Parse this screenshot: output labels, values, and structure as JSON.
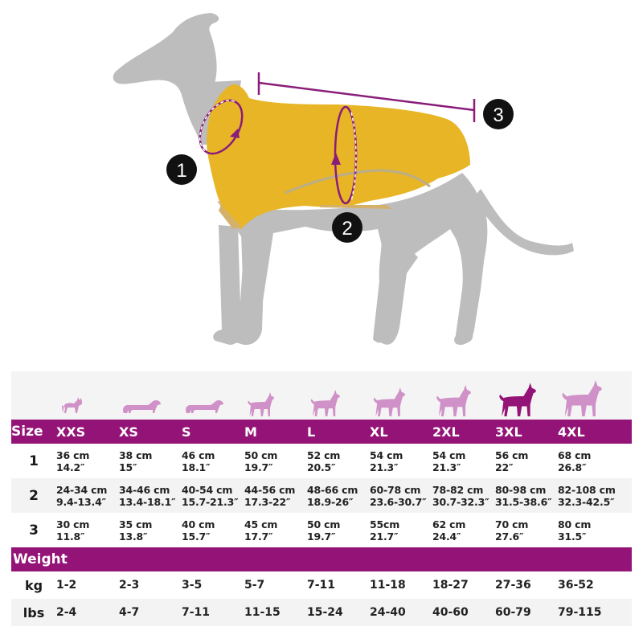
{
  "illustration": {
    "measurement_markers": [
      {
        "number": "1",
        "meaning": "neck circumference"
      },
      {
        "number": "2",
        "meaning": "chest circumference"
      },
      {
        "number": "3",
        "meaning": "back length"
      }
    ],
    "colors": {
      "dog_silhouette": "#bdbdbd",
      "coat": "#e8b526",
      "measure_line": "#8a1d7a",
      "marker_bg": "#111111"
    }
  },
  "size_chart": {
    "header_label": "Size",
    "sizes": [
      "XXS",
      "XS",
      "S",
      "M",
      "L",
      "XL",
      "2XL",
      "3XL",
      "4XL"
    ],
    "highlighted_size": "3XL",
    "icon_color": "#cf91c7",
    "icon_highlight_color": "#941377",
    "header_color": "#941377",
    "measurements": [
      {
        "label": "1",
        "values": [
          {
            "cm": "36 cm",
            "in": "14.2″"
          },
          {
            "cm": "38 cm",
            "in": "15″"
          },
          {
            "cm": "46 cm",
            "in": "18.1″"
          },
          {
            "cm": "50 cm",
            "in": "19.7″"
          },
          {
            "cm": "52 cm",
            "in": "20.5″"
          },
          {
            "cm": "54 cm",
            "in": "21.3″"
          },
          {
            "cm": "54 cm",
            "in": "21.3″"
          },
          {
            "cm": "56 cm",
            "in": "22″"
          },
          {
            "cm": "68 cm",
            "in": "26.8″"
          }
        ]
      },
      {
        "label": "2",
        "values": [
          {
            "cm": "24-34 cm",
            "in": "9.4-13.4″"
          },
          {
            "cm": "34-46 cm",
            "in": "13.4-18.1″"
          },
          {
            "cm": "40-54 cm",
            "in": "15.7-21.3″"
          },
          {
            "cm": "44-56 cm",
            "in": "17.3-22″"
          },
          {
            "cm": "48-66 cm",
            "in": "18.9-26″"
          },
          {
            "cm": "60-78 cm",
            "in": "23.6-30.7″"
          },
          {
            "cm": "78-82 cm",
            "in": "30.7-32.3″"
          },
          {
            "cm": "80-98 cm",
            "in": "31.5-38.6″"
          },
          {
            "cm": "82-108 cm",
            "in": "32.3-42.5″"
          }
        ]
      },
      {
        "label": "3",
        "values": [
          {
            "cm": "30 cm",
            "in": "11.8″"
          },
          {
            "cm": "35 cm",
            "in": "13.8″"
          },
          {
            "cm": "40 cm",
            "in": "15.7″"
          },
          {
            "cm": "45 cm",
            "in": "17.7″"
          },
          {
            "cm": "50 cm",
            "in": "19.7″"
          },
          {
            "cm": "55cm",
            "in": "21.7″"
          },
          {
            "cm": "62 cm",
            "in": "24.4″"
          },
          {
            "cm": "70 cm",
            "in": "27.6″"
          },
          {
            "cm": "80 cm",
            "in": "31.5″"
          }
        ]
      }
    ],
    "weight_header": "Weight",
    "weights": [
      {
        "label": "kg",
        "values": [
          "1-2",
          "2-3",
          "3-5",
          "5-7",
          "7-11",
          "11-18",
          "18-27",
          "27-36",
          "36-52"
        ]
      },
      {
        "label": "lbs",
        "values": [
          "2-4",
          "4-7",
          "7-11",
          "11-15",
          "15-24",
          "24-40",
          "40-60",
          "60-79",
          "79-115"
        ]
      }
    ]
  }
}
